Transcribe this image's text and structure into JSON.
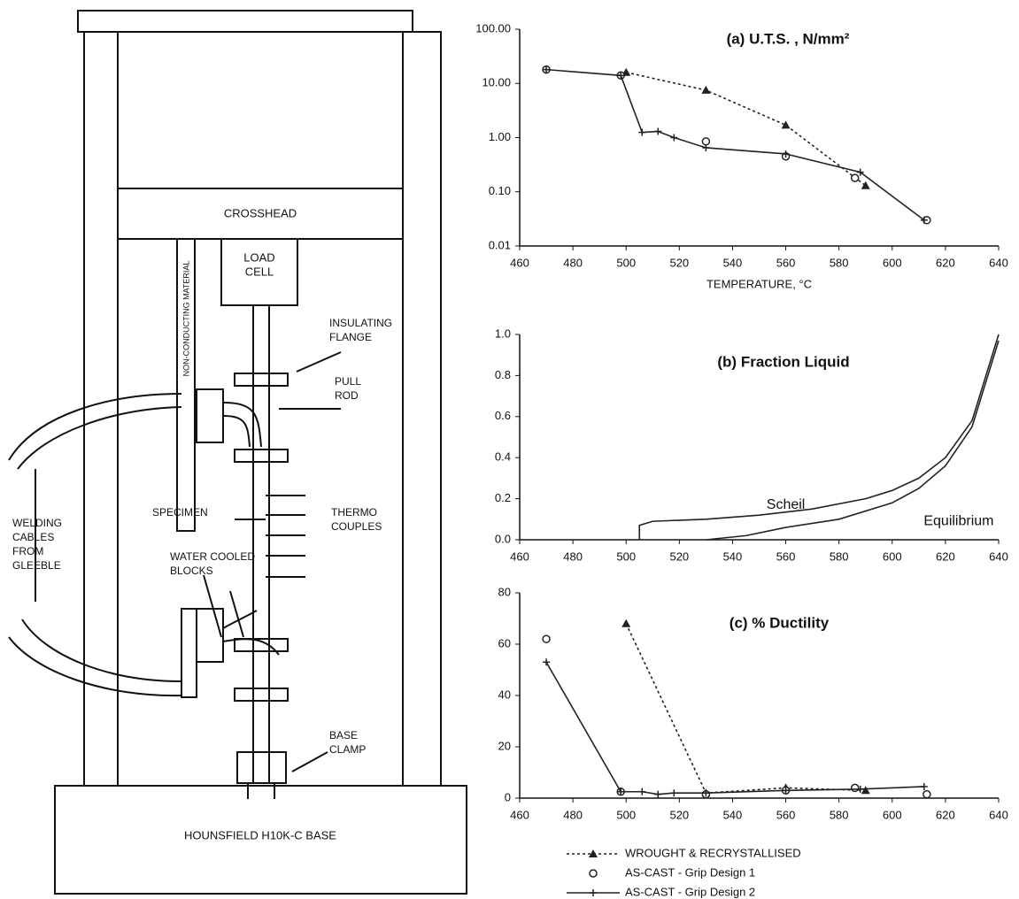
{
  "diagram": {
    "labels": [
      {
        "lines": [
          "CROSSHEAD"
        ]
      },
      {
        "lines": [
          "LOAD",
          "CELL"
        ]
      },
      {
        "lines": [
          "NON-CONDUCTING MATERIAL"
        ]
      },
      {
        "lines": [
          "INSULATING",
          "FLANGE"
        ]
      },
      {
        "lines": [
          "PULL",
          "ROD"
        ]
      },
      {
        "lines": [
          "SPECIMEN"
        ]
      },
      {
        "lines": [
          "THERMO",
          "COUPLES"
        ]
      },
      {
        "lines": [
          "WATER COOLED",
          "BLOCKS"
        ]
      },
      {
        "lines": [
          "WELDING",
          "CABLES",
          "FROM",
          "GLEEBLE"
        ]
      },
      {
        "lines": [
          "BASE",
          "CLAMP"
        ]
      },
      {
        "lines": [
          "HOUNSFIELD H10K-C BASE"
        ]
      }
    ]
  },
  "chart_data": [
    {
      "type": "line",
      "title": "(a) U.T.S. , N/mm²",
      "x_label": "TEMPERATURE, °C",
      "log_y": true,
      "xlim": [
        460,
        640
      ],
      "xticks": [
        460,
        480,
        500,
        520,
        540,
        560,
        580,
        600,
        620,
        640
      ],
      "ylim": [
        0.01,
        100
      ],
      "yticks": [
        {
          "value": 100,
          "label": "100.00"
        },
        {
          "value": 10,
          "label": "10.00"
        },
        {
          "value": 1,
          "label": "1.00"
        },
        {
          "value": 0.1,
          "label": "0.10"
        },
        {
          "value": 0.01,
          "label": "0.01"
        }
      ],
      "series": [
        {
          "color": "#222",
          "line": "dashed",
          "marker": "triangle",
          "x": [
            500,
            530,
            560,
            590
          ],
          "values": [
            16,
            7.5,
            1.7,
            0.13
          ]
        },
        {
          "color": "#222",
          "line": "none",
          "marker": "circle",
          "x": [
            470,
            498,
            530,
            560,
            586,
            613
          ],
          "values": [
            18,
            14,
            0.85,
            0.45,
            0.18,
            0.03
          ]
        },
        {
          "color": "#222",
          "line": "solid",
          "marker": "plus",
          "x": [
            470,
            498,
            506,
            512,
            518,
            530,
            560,
            588,
            612
          ],
          "values": [
            18,
            14,
            1.25,
            1.3,
            1.0,
            0.65,
            0.5,
            0.23,
            0.03
          ]
        }
      ]
    },
    {
      "type": "line",
      "title": "(b) Fraction Liquid",
      "log_y": false,
      "xlim": [
        460,
        640
      ],
      "xticks": [
        460,
        480,
        500,
        520,
        540,
        560,
        580,
        600,
        620,
        640
      ],
      "ylim": [
        0,
        1
      ],
      "yticks": [
        {
          "value": 1,
          "label": "1.0"
        },
        {
          "value": 0.8,
          "label": "0.8"
        },
        {
          "value": 0.6,
          "label": "0.6"
        },
        {
          "value": 0.4,
          "label": "0.4"
        },
        {
          "value": 0.2,
          "label": "0.2"
        },
        {
          "value": 0,
          "label": "0.0"
        }
      ],
      "annotations": [
        "Scheil",
        "Equilibrium"
      ],
      "series": [
        {
          "color": "#222",
          "line": "solid",
          "marker": "none",
          "x": [
            505,
            505,
            510,
            530,
            550,
            570,
            590,
            600,
            610,
            620,
            630,
            640
          ],
          "values": [
            0,
            0.07,
            0.09,
            0.1,
            0.12,
            0.15,
            0.2,
            0.24,
            0.3,
            0.4,
            0.58,
            1.0
          ]
        },
        {
          "color": "#222",
          "line": "solid",
          "marker": "none",
          "x": [
            530,
            545,
            560,
            580,
            600,
            610,
            620,
            630,
            640
          ],
          "values": [
            0,
            0.02,
            0.06,
            0.1,
            0.18,
            0.25,
            0.36,
            0.55,
            0.97
          ]
        }
      ]
    },
    {
      "type": "line",
      "title": "(c) % Ductility",
      "log_y": false,
      "xlim": [
        460,
        640
      ],
      "xticks": [
        460,
        480,
        500,
        520,
        540,
        560,
        580,
        600,
        620,
        640
      ],
      "ylim": [
        0,
        80
      ],
      "yticks": [
        80,
        60,
        40,
        20,
        0
      ],
      "series": [
        {
          "name": "WROUGHT & RECRYSTALLISED",
          "color": "#222",
          "line": "dashed",
          "marker": "triangle",
          "x": [
            500,
            530,
            560,
            590
          ],
          "values": [
            68,
            2,
            4,
            3
          ]
        },
        {
          "name": "AS-CAST - Grip Design 1",
          "color": "#222",
          "line": "none",
          "marker": "circle",
          "x": [
            470,
            498,
            530,
            560,
            586,
            613
          ],
          "values": [
            62,
            2.5,
            1.5,
            3,
            4,
            1.5
          ]
        },
        {
          "name": "AS-CAST - Grip Design 2",
          "color": "#222",
          "line": "solid",
          "marker": "plus",
          "x": [
            470,
            498,
            506,
            512,
            518,
            530,
            560,
            588,
            612
          ],
          "values": [
            53,
            2.5,
            2.5,
            1.5,
            2,
            2,
            3,
            3.5,
            4.5
          ]
        }
      ]
    }
  ]
}
